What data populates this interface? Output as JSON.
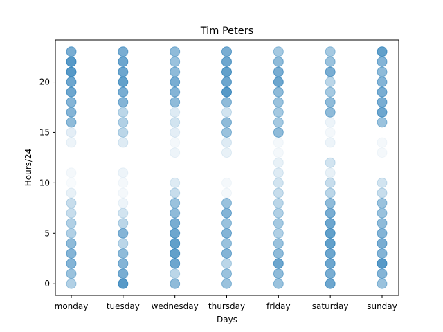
{
  "chart_data": {
    "type": "scatter",
    "title": "Tim Peters",
    "xlabel": "Days",
    "ylabel": "Hours/24",
    "categories": [
      "monday",
      "tuesday",
      "wednesday",
      "thursday",
      "friday",
      "saturday",
      "sunday"
    ],
    "y_ticks": [
      0,
      5,
      10,
      15,
      20
    ],
    "ylim": [
      -1.15,
      24.15
    ],
    "grid": false,
    "marker_color": "#1f77b4",
    "activity": {
      "monday": [
        0.35,
        0.45,
        0.55,
        0.55,
        0.5,
        0.35,
        0.35,
        0.25,
        0.25,
        0.1,
        0.03,
        0.05,
        0,
        0,
        0.08,
        0.12,
        0.5,
        0.55,
        0.55,
        0.65,
        0.65,
        0.75,
        0.75,
        0.6
      ],
      "tuesday": [
        0.75,
        0.6,
        0.55,
        0.5,
        0.3,
        0.55,
        0.3,
        0.2,
        0.08,
        0.05,
        0.05,
        0.08,
        0,
        0,
        0.15,
        0.3,
        0.35,
        0.3,
        0.55,
        0.6,
        0.7,
        0.65,
        0.65,
        0.6
      ],
      "wednesday": [
        0.5,
        0.3,
        0.65,
        0.7,
        0.7,
        0.65,
        0.6,
        0.5,
        0.45,
        0.25,
        0.15,
        0,
        0,
        0.08,
        0.05,
        0.12,
        0.2,
        0.15,
        0.5,
        0.55,
        0.6,
        0.5,
        0.45,
        0.5
      ],
      "thursday": [
        0.45,
        0.45,
        0.3,
        0.55,
        0.45,
        0.55,
        0.45,
        0.55,
        0.45,
        0.05,
        0.05,
        0,
        0,
        0.1,
        0.15,
        0.45,
        0.5,
        0.2,
        0.5,
        0.75,
        0.65,
        0.7,
        0.65,
        0.6
      ],
      "friday": [
        0.45,
        0.5,
        0.65,
        0.5,
        0.45,
        0.35,
        0.4,
        0.35,
        0.3,
        0.25,
        0.2,
        0.15,
        0.1,
        0.05,
        0.05,
        0.5,
        0.4,
        0.4,
        0.45,
        0.5,
        0.65,
        0.6,
        0.5,
        0.4
      ],
      "saturday": [
        0.65,
        0.6,
        0.65,
        0.65,
        0.7,
        0.7,
        0.65,
        0.6,
        0.5,
        0.3,
        0.25,
        0.1,
        0.2,
        0,
        0.08,
        0.05,
        0.08,
        0.5,
        0.5,
        0.4,
        0.3,
        0.6,
        0.45,
        0.4
      ],
      "sunday": [
        0.45,
        0.55,
        0.75,
        0.55,
        0.6,
        0.55,
        0.5,
        0.45,
        0.45,
        0.25,
        0.2,
        0,
        0,
        0.05,
        0.05,
        0,
        0.45,
        0.65,
        0.6,
        0.6,
        0.55,
        0.5,
        0.55,
        0.7
      ]
    }
  }
}
